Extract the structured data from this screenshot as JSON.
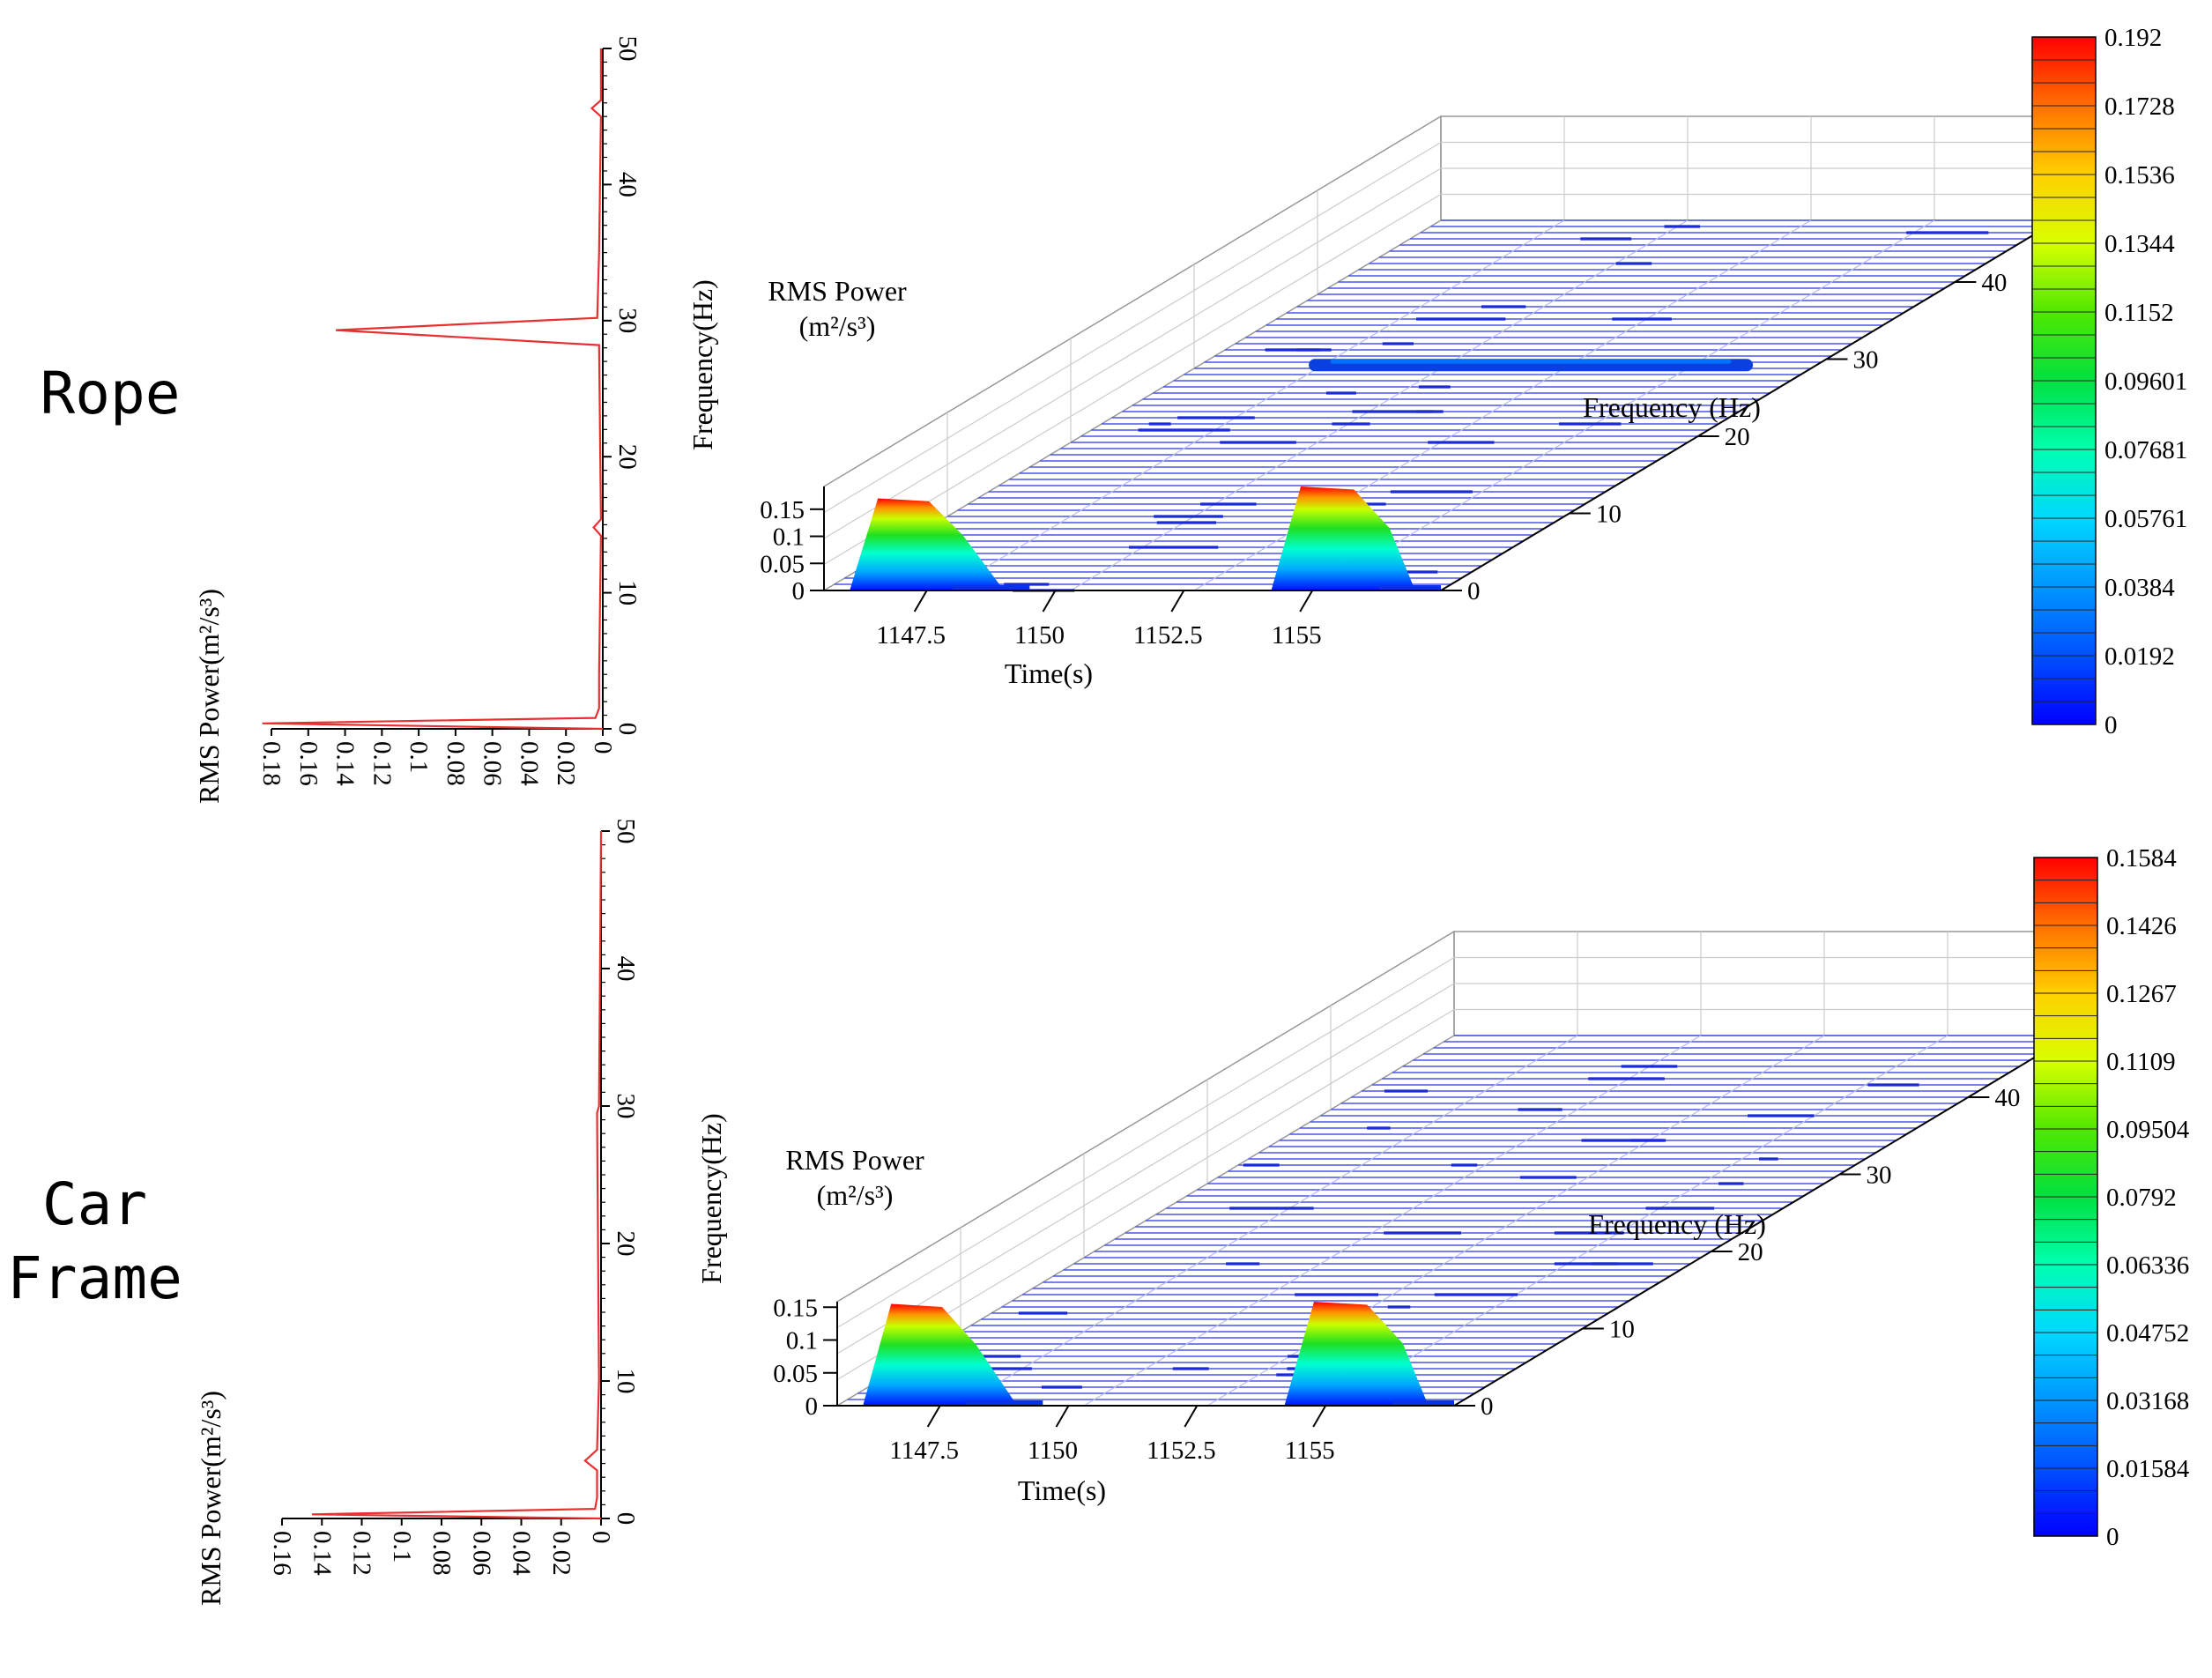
{
  "chart_data": [
    {
      "type": "line",
      "name": "Rope",
      "title": "Rope",
      "rms_axis": {
        "label": "RMS Power(m²/s³)",
        "ticks": [
          "0.18",
          "0.16",
          "0.14",
          "0.12",
          "0.1",
          "0.08",
          "0.06",
          "0.04",
          "0.02",
          "0"
        ],
        "range": [
          0.18,
          0
        ]
      },
      "freq_axis": {
        "ticks": [
          "0",
          "10",
          "20",
          "30",
          "40",
          "50"
        ],
        "range": [
          0,
          50
        ]
      },
      "series": [
        {
          "name": "rms-spectrum",
          "color": "#e83030",
          "points": [
            [
              0,
              0.0
            ],
            [
              0.4,
              0.185
            ],
            [
              0.8,
              0.004
            ],
            [
              1.5,
              0.002
            ],
            [
              4,
              0.002
            ],
            [
              14.2,
              0.001
            ],
            [
              14.8,
              0.005
            ],
            [
              15.4,
              0.001
            ],
            [
              28.2,
              0.002
            ],
            [
              29.3,
              0.145
            ],
            [
              30.2,
              0.003
            ],
            [
              35,
              0.002
            ],
            [
              45,
              0.001
            ],
            [
              45.6,
              0.006
            ],
            [
              46.2,
              0.001
            ],
            [
              50,
              0.001
            ]
          ]
        }
      ]
    },
    {
      "type": "surface3d",
      "name": "Rope",
      "title": "Rope",
      "z_axis": {
        "label_line1": "RMS Power",
        "label_line2": "(m²/s³)",
        "ticks": [
          "0",
          "0.05",
          "0.1",
          "0.15"
        ],
        "range": [
          0,
          0.192
        ]
      },
      "time_axis": {
        "label": "Time(s)",
        "ticks": [
          "1147.5",
          "1150",
          "1152.5",
          "1155"
        ],
        "range": [
          1145.5,
          1157.5
        ]
      },
      "freq_axis": {
        "label": "Frequency (Hz)",
        "wall_label": "Frequency(Hz)",
        "ticks": [
          "0",
          "10",
          "20",
          "30",
          "40"
        ],
        "range": [
          0,
          48
        ]
      },
      "peaks": [
        {
          "time_start": 1146.0,
          "time_end": 1148.2,
          "value": 0.17,
          "tail_end": 1149.0
        },
        {
          "time_start": 1154.2,
          "time_end": 1156.5,
          "value": 0.192,
          "tail_end": 1157.0
        }
      ],
      "ridges": [
        {
          "freq": 29,
          "time_start": 1147.8,
          "time_end": 1156.2,
          "value": 0.02
        }
      ]
    },
    {
      "type": "colorbar",
      "name": "Rope",
      "ticks": [
        "0.192",
        "0.1728",
        "0.1536",
        "0.1344",
        "0.1152",
        "0.09601",
        "0.07681",
        "0.05761",
        "0.0384",
        "0.0192",
        "0"
      ],
      "range": [
        0,
        0.192
      ]
    },
    {
      "type": "line",
      "name": "Car Frame",
      "title": "Car Frame",
      "rms_axis": {
        "label": "RMS Power(m²/s³)",
        "ticks": [
          "0.16",
          "0.14",
          "0.12",
          "0.1",
          "0.08",
          "0.06",
          "0.04",
          "0.02",
          "0"
        ],
        "range": [
          0.16,
          0
        ]
      },
      "freq_axis": {
        "ticks": [
          "0",
          "10",
          "20",
          "30",
          "40",
          "50"
        ],
        "range": [
          0,
          50
        ]
      },
      "series": [
        {
          "name": "rms-spectrum",
          "color": "#e83030",
          "points": [
            [
              0,
              0.0
            ],
            [
              0.3,
              0.145
            ],
            [
              0.7,
              0.003
            ],
            [
              1.5,
              0.002
            ],
            [
              3.5,
              0.002
            ],
            [
              4.2,
              0.008
            ],
            [
              5.0,
              0.002
            ],
            [
              10,
              0.001
            ],
            [
              29.5,
              0.002
            ],
            [
              30,
              0.001
            ],
            [
              50,
              0.0
            ]
          ]
        }
      ]
    },
    {
      "type": "surface3d",
      "name": "Car Frame",
      "title": "Car Frame",
      "z_axis": {
        "label_line1": "RMS Power",
        "label_line2": "(m²/s³)",
        "ticks": [
          "0",
          "0.05",
          "0.1",
          "0.15"
        ],
        "range": [
          0,
          0.1584
        ]
      },
      "time_axis": {
        "label": "Time(s)",
        "ticks": [
          "1147.5",
          "1150",
          "1152.5",
          "1155"
        ],
        "range": [
          1145.5,
          1157.5
        ]
      },
      "freq_axis": {
        "label": "Frequency (Hz)",
        "wall_label": "Frequency(Hz)",
        "ticks": [
          "0",
          "10",
          "20",
          "30",
          "40"
        ],
        "range": [
          0,
          48
        ]
      },
      "peaks": [
        {
          "time_start": 1146.0,
          "time_end": 1148.2,
          "value": 0.155,
          "tail_end": 1149.0
        },
        {
          "time_start": 1154.2,
          "time_end": 1156.5,
          "value": 0.1584,
          "tail_end": 1157.0
        }
      ],
      "ridges": []
    },
    {
      "type": "colorbar",
      "name": "Car Frame",
      "ticks": [
        "0.1584",
        "0.1426",
        "0.1267",
        "0.1109",
        "0.09504",
        "0.0792",
        "0.06336",
        "0.04752",
        "0.03168",
        "0.01584",
        "0"
      ],
      "range": [
        0,
        0.1584
      ]
    }
  ],
  "labels": {
    "rope": "Rope",
    "car_frame_line1": "Car",
    "car_frame_line2": "Frame"
  },
  "colors": {
    "spectrum": "#e83030",
    "grid_blue": "#4a56e8",
    "axis": "#000000"
  }
}
